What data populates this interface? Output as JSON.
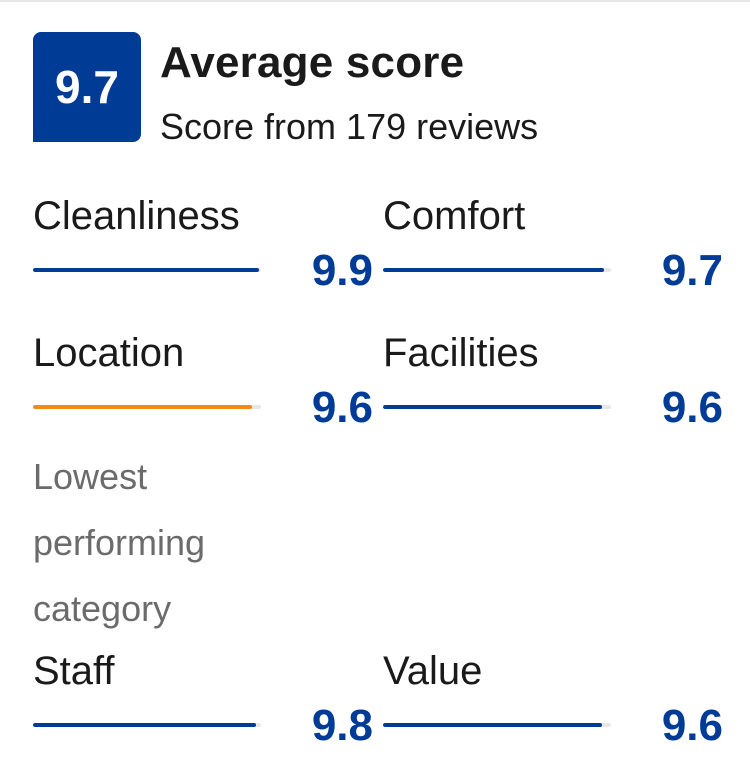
{
  "summary": {
    "score": "9.7",
    "title": "Average score",
    "subtitle": "Score from 179 reviews"
  },
  "categories": [
    {
      "label": "Cleanliness",
      "score": "9.9",
      "value": 9.9
    },
    {
      "label": "Comfort",
      "score": "9.7",
      "value": 9.7
    },
    {
      "label": "Location",
      "score": "9.6",
      "value": 9.6,
      "lowest": true
    },
    {
      "label": "Facilities",
      "score": "9.6",
      "value": 9.6
    },
    {
      "label": "Staff",
      "score": "9.8",
      "value": 9.8
    },
    {
      "label": "Value",
      "score": "9.6",
      "value": 9.6
    }
  ],
  "lowest_note": "Lowest performing category",
  "colors": {
    "brand": "#003b95",
    "lowest": "#f08a1a",
    "track": "#e7e7e7"
  }
}
